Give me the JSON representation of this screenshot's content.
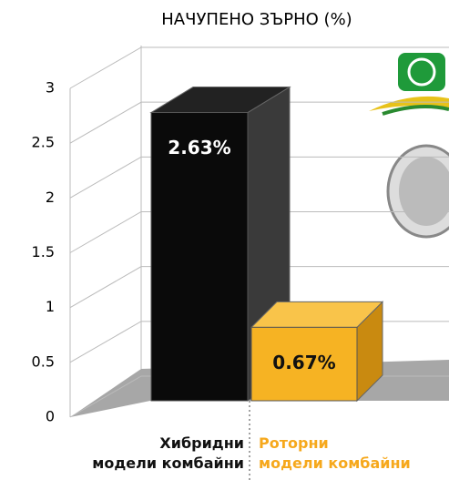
{
  "chart_data": {
    "type": "bar3d",
    "title": "НАЧУПЕНО ЗЪРНО (%)",
    "categories": [
      "Хибридни\nмодели комбайни",
      "Роторни\nмодели комбайни"
    ],
    "values": [
      2.63,
      0.67
    ],
    "value_labels": [
      "2.63%",
      "0.67%"
    ],
    "colors": [
      "#0a0a0a",
      "#f6b323"
    ],
    "ylim": [
      0,
      3
    ],
    "yticks": [
      0,
      0.5,
      1,
      1.5,
      2,
      2.5,
      3
    ],
    "grid": true
  }
}
